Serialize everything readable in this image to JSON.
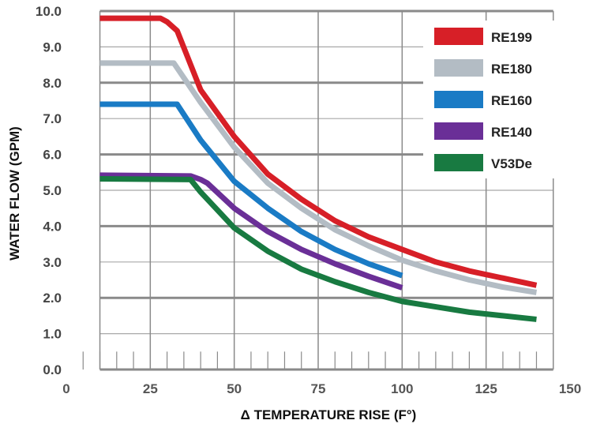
{
  "chart_data": {
    "type": "line",
    "title": "",
    "xlabel": "Δ TEMPERATURE RISE (F°)",
    "ylabel": "WATER FLOW (GPM)",
    "xlim": [
      0,
      150
    ],
    "ylim": [
      0,
      10
    ],
    "x_ticks": [
      "0",
      "25",
      "50",
      "75",
      "100",
      "125",
      "150"
    ],
    "y_ticks": [
      "0.0",
      "1.0",
      "2.0",
      "3.0",
      "4.0",
      "5.0",
      "6.0",
      "7.0",
      "8.0",
      "9.0",
      "10.0"
    ],
    "grid": true,
    "legend_position": "top-right",
    "series": [
      {
        "name": "RE199",
        "color": "#d71f27",
        "x": [
          10,
          28,
          30,
          33,
          40,
          50,
          60,
          70,
          80,
          90,
          100,
          110,
          120,
          130,
          140
        ],
        "y": [
          9.8,
          9.8,
          9.7,
          9.45,
          7.8,
          6.5,
          5.45,
          4.75,
          4.15,
          3.7,
          3.35,
          3.0,
          2.75,
          2.55,
          2.35
        ]
      },
      {
        "name": "RE180",
        "color": "#b3bcc4",
        "x": [
          10,
          32,
          40,
          50,
          60,
          70,
          80,
          90,
          100,
          110,
          120,
          130,
          140
        ],
        "y": [
          8.55,
          8.55,
          7.45,
          6.2,
          5.2,
          4.5,
          3.9,
          3.45,
          3.05,
          2.75,
          2.5,
          2.3,
          2.15
        ]
      },
      {
        "name": "RE160",
        "color": "#1a7bc5",
        "x": [
          10,
          33,
          40,
          50,
          60,
          70,
          80,
          90,
          100
        ],
        "y": [
          7.4,
          7.4,
          6.4,
          5.25,
          4.5,
          3.85,
          3.35,
          2.95,
          2.62
        ]
      },
      {
        "name": "RE140",
        "color": "#6a2f97",
        "x": [
          10,
          37,
          40,
          42,
          50,
          60,
          70,
          80,
          90,
          100
        ],
        "y": [
          5.42,
          5.4,
          5.3,
          5.2,
          4.5,
          3.85,
          3.35,
          2.95,
          2.6,
          2.28
        ]
      },
      {
        "name": "V53De",
        "color": "#187a41",
        "x": [
          10,
          37,
          40,
          50,
          60,
          70,
          80,
          90,
          100,
          110,
          120,
          130,
          140
        ],
        "y": [
          5.32,
          5.3,
          4.95,
          3.95,
          3.3,
          2.8,
          2.45,
          2.15,
          1.9,
          1.75,
          1.6,
          1.5,
          1.4
        ]
      }
    ]
  }
}
